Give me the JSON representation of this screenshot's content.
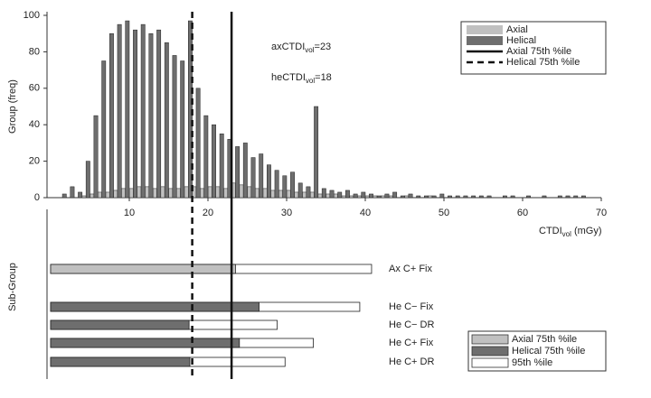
{
  "chart_data": [
    {
      "type": "histogram",
      "ylabel": "Group (freq)",
      "xlabel": {
        "text": "CTDI",
        "sub": "vol",
        "rest": " (mGy)"
      },
      "bins": [
        1,
        2,
        3,
        4,
        5,
        6,
        7,
        8,
        9,
        10,
        11,
        12,
        13,
        14,
        15,
        16,
        17,
        18,
        19,
        20,
        21,
        22,
        23,
        24,
        25,
        26,
        27,
        28,
        29,
        30,
        31,
        32,
        33,
        34,
        35,
        36,
        37,
        38,
        39,
        40,
        41,
        42,
        43,
        44,
        45,
        46,
        47,
        48,
        49,
        50,
        51,
        52,
        53,
        54,
        55,
        56,
        57,
        58,
        59,
        60,
        61,
        62,
        63,
        64,
        65,
        66,
        67,
        68,
        69,
        70
      ],
      "series": [
        {
          "name": "Axial",
          "color": "#c0c0c0",
          "values": [
            0,
            0,
            0,
            1,
            2,
            3,
            3,
            4,
            5,
            5,
            6,
            6,
            5,
            6,
            5,
            5,
            6,
            6,
            5,
            6,
            6,
            5,
            8,
            7,
            6,
            5,
            5,
            4,
            4,
            4,
            3,
            3,
            3,
            2,
            2,
            2,
            1,
            1,
            1,
            1,
            1,
            1,
            1,
            0,
            1,
            0,
            0,
            1,
            0,
            0,
            0,
            0,
            0,
            0,
            0,
            0,
            0,
            0,
            0,
            0,
            0,
            0,
            0,
            0,
            0,
            0,
            0,
            0,
            0
          ]
        },
        {
          "name": "Helical",
          "color": "#6e6e6e",
          "values": [
            2,
            6,
            3,
            20,
            45,
            75,
            90,
            95,
            97,
            92,
            95,
            90,
            92,
            85,
            78,
            75,
            97,
            60,
            45,
            40,
            35,
            32,
            28,
            30,
            22,
            24,
            18,
            15,
            12,
            14,
            8,
            6,
            50,
            5,
            4,
            3,
            4,
            2,
            3,
            2,
            1,
            2,
            3,
            1,
            2,
            1,
            1,
            1,
            2,
            1,
            1,
            1,
            1,
            1,
            1,
            0,
            1,
            1,
            0,
            1,
            0,
            1,
            0,
            1,
            1,
            1,
            1,
            0,
            0
          ]
        }
      ],
      "xlim": [
        0,
        70
      ],
      "ylim": [
        0,
        100
      ],
      "xticks": [
        10,
        20,
        30,
        40,
        50,
        60,
        70
      ],
      "yticks": [
        0,
        20,
        40,
        60,
        80,
        100
      ],
      "reference_lines": [
        {
          "name": "Axial 75th %ile",
          "value": 23,
          "dashed": false
        },
        {
          "name": "Helical 75th %ile",
          "value": 18,
          "dashed": true
        }
      ],
      "annotations": [
        {
          "text": "axCTDI",
          "sub": "vol",
          "rest": "=23"
        },
        {
          "text": "heCTDI",
          "sub": "vol",
          "rest": "=18"
        }
      ]
    },
    {
      "type": "hbar",
      "ylabel": "Sub-Group",
      "categories": [
        "Ax C+ Fix",
        "He C− Fix",
        "He C− DR",
        "He C+ Fix",
        "He C+ DR"
      ],
      "xlim": [
        0,
        70
      ],
      "series": [
        {
          "name": "Axial 75th %ile",
          "color": "#c0c0c0",
          "values": [
            23.5,
            null,
            null,
            null,
            null
          ]
        },
        {
          "name": "Helical 75th %ile",
          "color": "#6e6e6e",
          "values": [
            null,
            26.5,
            17.6,
            24,
            17.7
          ]
        },
        {
          "name": "95th %ile",
          "color": "#ffffff",
          "values": [
            40.8,
            39.3,
            28.8,
            33.4,
            29.8
          ]
        }
      ]
    }
  ]
}
